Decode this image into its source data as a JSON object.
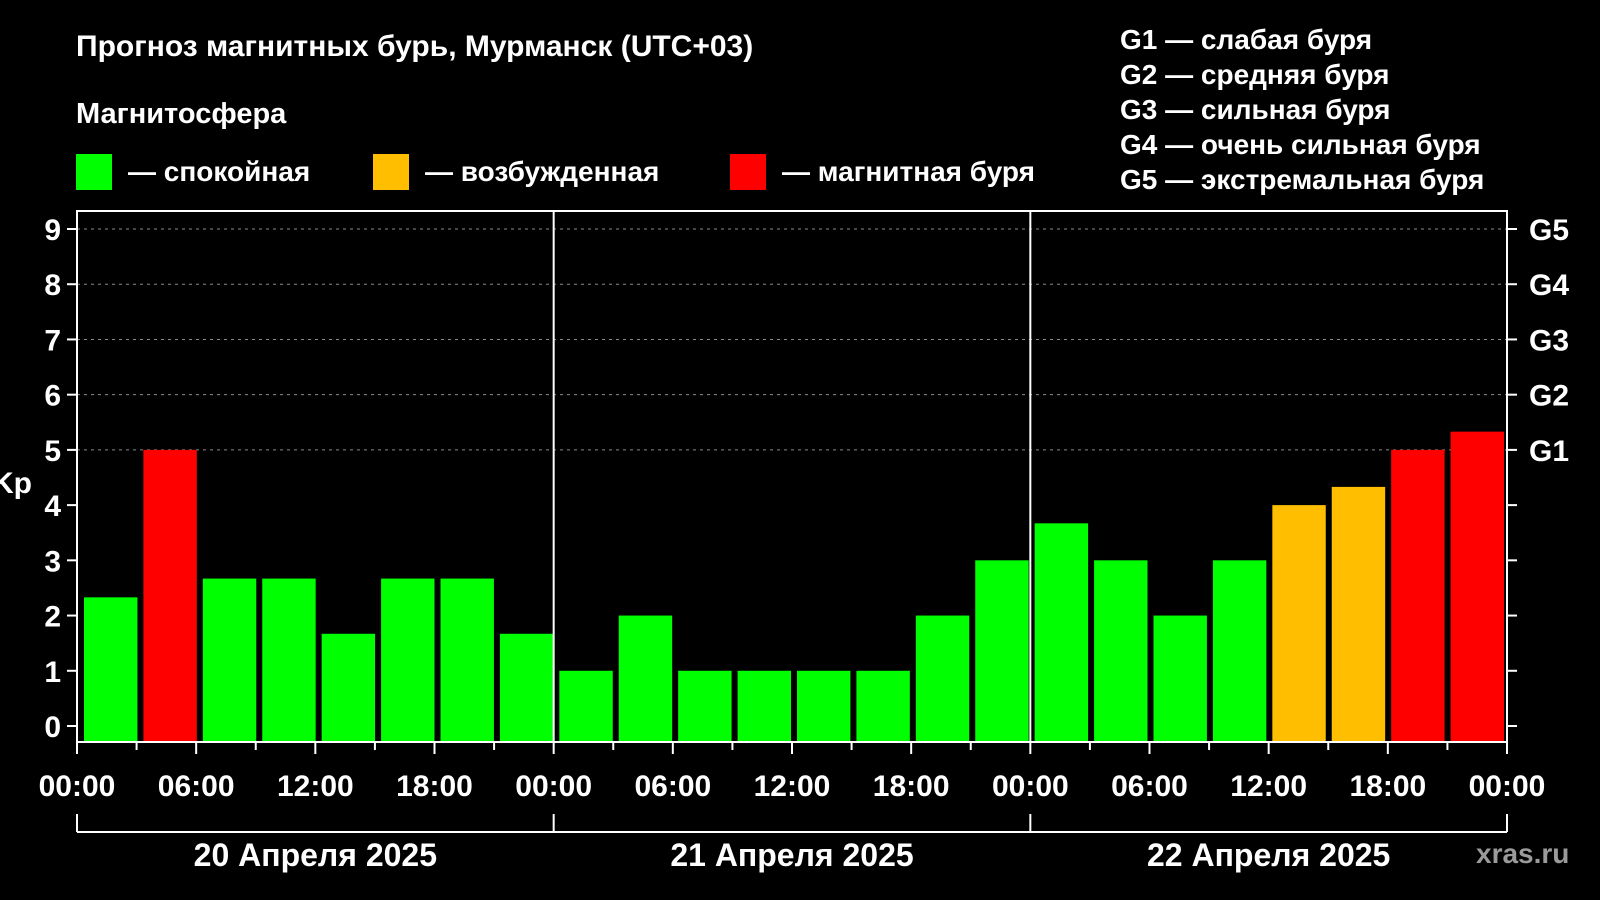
{
  "title": "Прогноз магнитных бурь, Мурманск (UTC+03)",
  "subtitle": "Магнитосфера",
  "legend": [
    {
      "color": "#00ff00",
      "label": "— спокойная"
    },
    {
      "color": "#ffbf00",
      "label": "— возбужденная"
    },
    {
      "color": "#ff0000",
      "label": "— магнитная буря"
    }
  ],
  "g_legend": [
    "G1 — слабая буря",
    "G2 — средняя буря",
    "G3 — сильная буря",
    "G4 — очень сильная буря",
    "G5 — экстремальная буря"
  ],
  "watermark": "xras.ru",
  "chart_data": {
    "type": "bar",
    "ylabel": "Kp",
    "ylim": [
      0,
      9
    ],
    "yticks": [
      0,
      1,
      2,
      3,
      4,
      5,
      6,
      7,
      8,
      9
    ],
    "right_ticks": [
      {
        "value": 5,
        "label": "G1"
      },
      {
        "value": 6,
        "label": "G2"
      },
      {
        "value": 7,
        "label": "G3"
      },
      {
        "value": 8,
        "label": "G4"
      },
      {
        "value": 9,
        "label": "G5"
      }
    ],
    "xtick_labels": [
      "00:00",
      "06:00",
      "12:00",
      "18:00",
      "00:00",
      "06:00",
      "12:00",
      "18:00",
      "00:00",
      "06:00",
      "12:00",
      "18:00",
      "00:00"
    ],
    "days": [
      "20 Апреля 2025",
      "21 Апреля 2025",
      "22 Апреля 2025"
    ],
    "grid": "horizontal dotted at 5–9",
    "values": [
      2.33,
      5.0,
      2.67,
      2.67,
      1.67,
      2.67,
      2.67,
      1.67,
      1.0,
      2.0,
      1.0,
      1.0,
      1.0,
      1.0,
      2.0,
      3.0,
      3.67,
      3.0,
      2.0,
      3.0,
      4.0,
      4.33,
      5.0,
      5.33
    ],
    "levels": [
      "quiet",
      "storm",
      "quiet",
      "quiet",
      "quiet",
      "quiet",
      "quiet",
      "quiet",
      "quiet",
      "quiet",
      "quiet",
      "quiet",
      "quiet",
      "quiet",
      "quiet",
      "quiet",
      "quiet",
      "quiet",
      "quiet",
      "quiet",
      "active",
      "active",
      "storm",
      "storm"
    ],
    "level_colors": {
      "quiet": "#00ff00",
      "active": "#ffbf00",
      "storm": "#ff0000"
    }
  }
}
